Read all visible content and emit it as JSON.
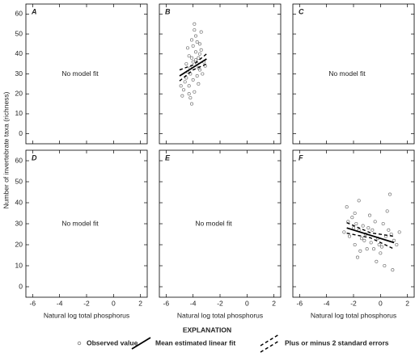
{
  "axes": {
    "xlabel": "Natural log total phosphorus",
    "ylabel": "Number of invertebrate taxa (richness)",
    "xlim": [
      -6.5,
      2.5
    ],
    "ylim": [
      -5,
      65
    ],
    "xticks": [
      -6,
      -4,
      -2,
      0,
      2
    ],
    "yticks": [
      0,
      10,
      20,
      30,
      40,
      50,
      60
    ]
  },
  "legend": {
    "title": "EXPLANATION",
    "items": [
      "Observed value",
      "Mean estimated linear fit",
      "Plus or minus 2 standard errors"
    ]
  },
  "chart_data": [
    {
      "type": "scatter",
      "label": "A",
      "annotation": "No model fit"
    },
    {
      "type": "scatter",
      "label": "B",
      "x": [
        -4.2,
        -3.8,
        -4.5,
        -3.5,
        -4.0,
        -3.9,
        -4.3,
        -3.6,
        -4.7,
        -3.3,
        -4.1,
        -3.7,
        -4.4,
        -3.4,
        -4.8,
        -3.2,
        -4.0,
        -3.9,
        -4.6,
        -3.5,
        -4.2,
        -3.8,
        -4.3,
        -3.6,
        -4.1,
        -3.7,
        -4.5,
        -3.4,
        -4.0,
        -3.9,
        -4.9,
        -3.1,
        -4.2,
        -3.8,
        -4.4,
        -3.6,
        -4.1,
        -3.7,
        -4.3,
        -3.5
      ],
      "y": [
        33,
        41,
        28,
        45,
        36,
        52,
        24,
        38,
        22,
        30,
        47,
        35,
        31,
        42,
        19,
        36,
        27,
        55,
        26,
        40,
        18,
        49,
        39,
        33,
        15,
        29,
        35,
        51,
        44,
        21,
        24,
        34,
        30,
        37,
        43,
        25,
        38,
        46,
        20,
        32
      ],
      "fit": {
        "x": [
          -5,
          -3
        ],
        "y": [
          29,
          37.5
        ]
      },
      "upper": {
        "x": [
          -5,
          -4,
          -3
        ],
        "y": [
          32,
          34.5,
          40
        ]
      },
      "lower": {
        "x": [
          -5,
          -4,
          -3
        ],
        "y": [
          26.5,
          32,
          35
        ]
      }
    },
    {
      "type": "scatter",
      "label": "C",
      "annotation": "No model fit"
    },
    {
      "type": "scatter",
      "label": "D",
      "annotation": "No model fit"
    },
    {
      "type": "scatter",
      "label": "E",
      "annotation": "No model fit"
    },
    {
      "type": "scatter",
      "label": "F",
      "x": [
        -2.5,
        -1.8,
        -1.2,
        -0.6,
        0.1,
        0.8,
        -2.1,
        -1.5,
        -0.9,
        -0.3,
        0.4,
        1.2,
        -2.7,
        -1.9,
        -1.3,
        -0.7,
        0.0,
        0.6,
        -2.3,
        -1.6,
        -1.0,
        -0.4,
        0.3,
        1.0,
        -2.0,
        -1.4,
        -0.8,
        -0.1,
        0.5,
        1.4,
        -2.4,
        -1.7,
        -1.1,
        -0.5,
        0.2,
        0.9,
        -1.6,
        -0.2,
        -1.9,
        0.7
      ],
      "y": [
        38,
        30,
        22,
        27,
        19,
        25,
        33,
        17,
        28,
        12,
        24,
        20,
        26,
        35,
        29,
        21,
        16,
        27,
        24,
        41,
        18,
        31,
        10,
        22,
        28,
        23,
        34,
        20,
        36,
        26,
        31,
        14,
        25,
        18,
        30,
        8,
        27,
        23,
        20,
        44
      ],
      "fit": {
        "x": [
          -2.5,
          1
        ],
        "y": [
          28,
          21
        ]
      },
      "upper": {
        "x": [
          -2.5,
          -0.75,
          1
        ],
        "y": [
          30.5,
          25.7,
          24
        ]
      },
      "lower": {
        "x": [
          -2.5,
          -0.75,
          1
        ],
        "y": [
          25.5,
          23.3,
          18
        ]
      }
    }
  ]
}
